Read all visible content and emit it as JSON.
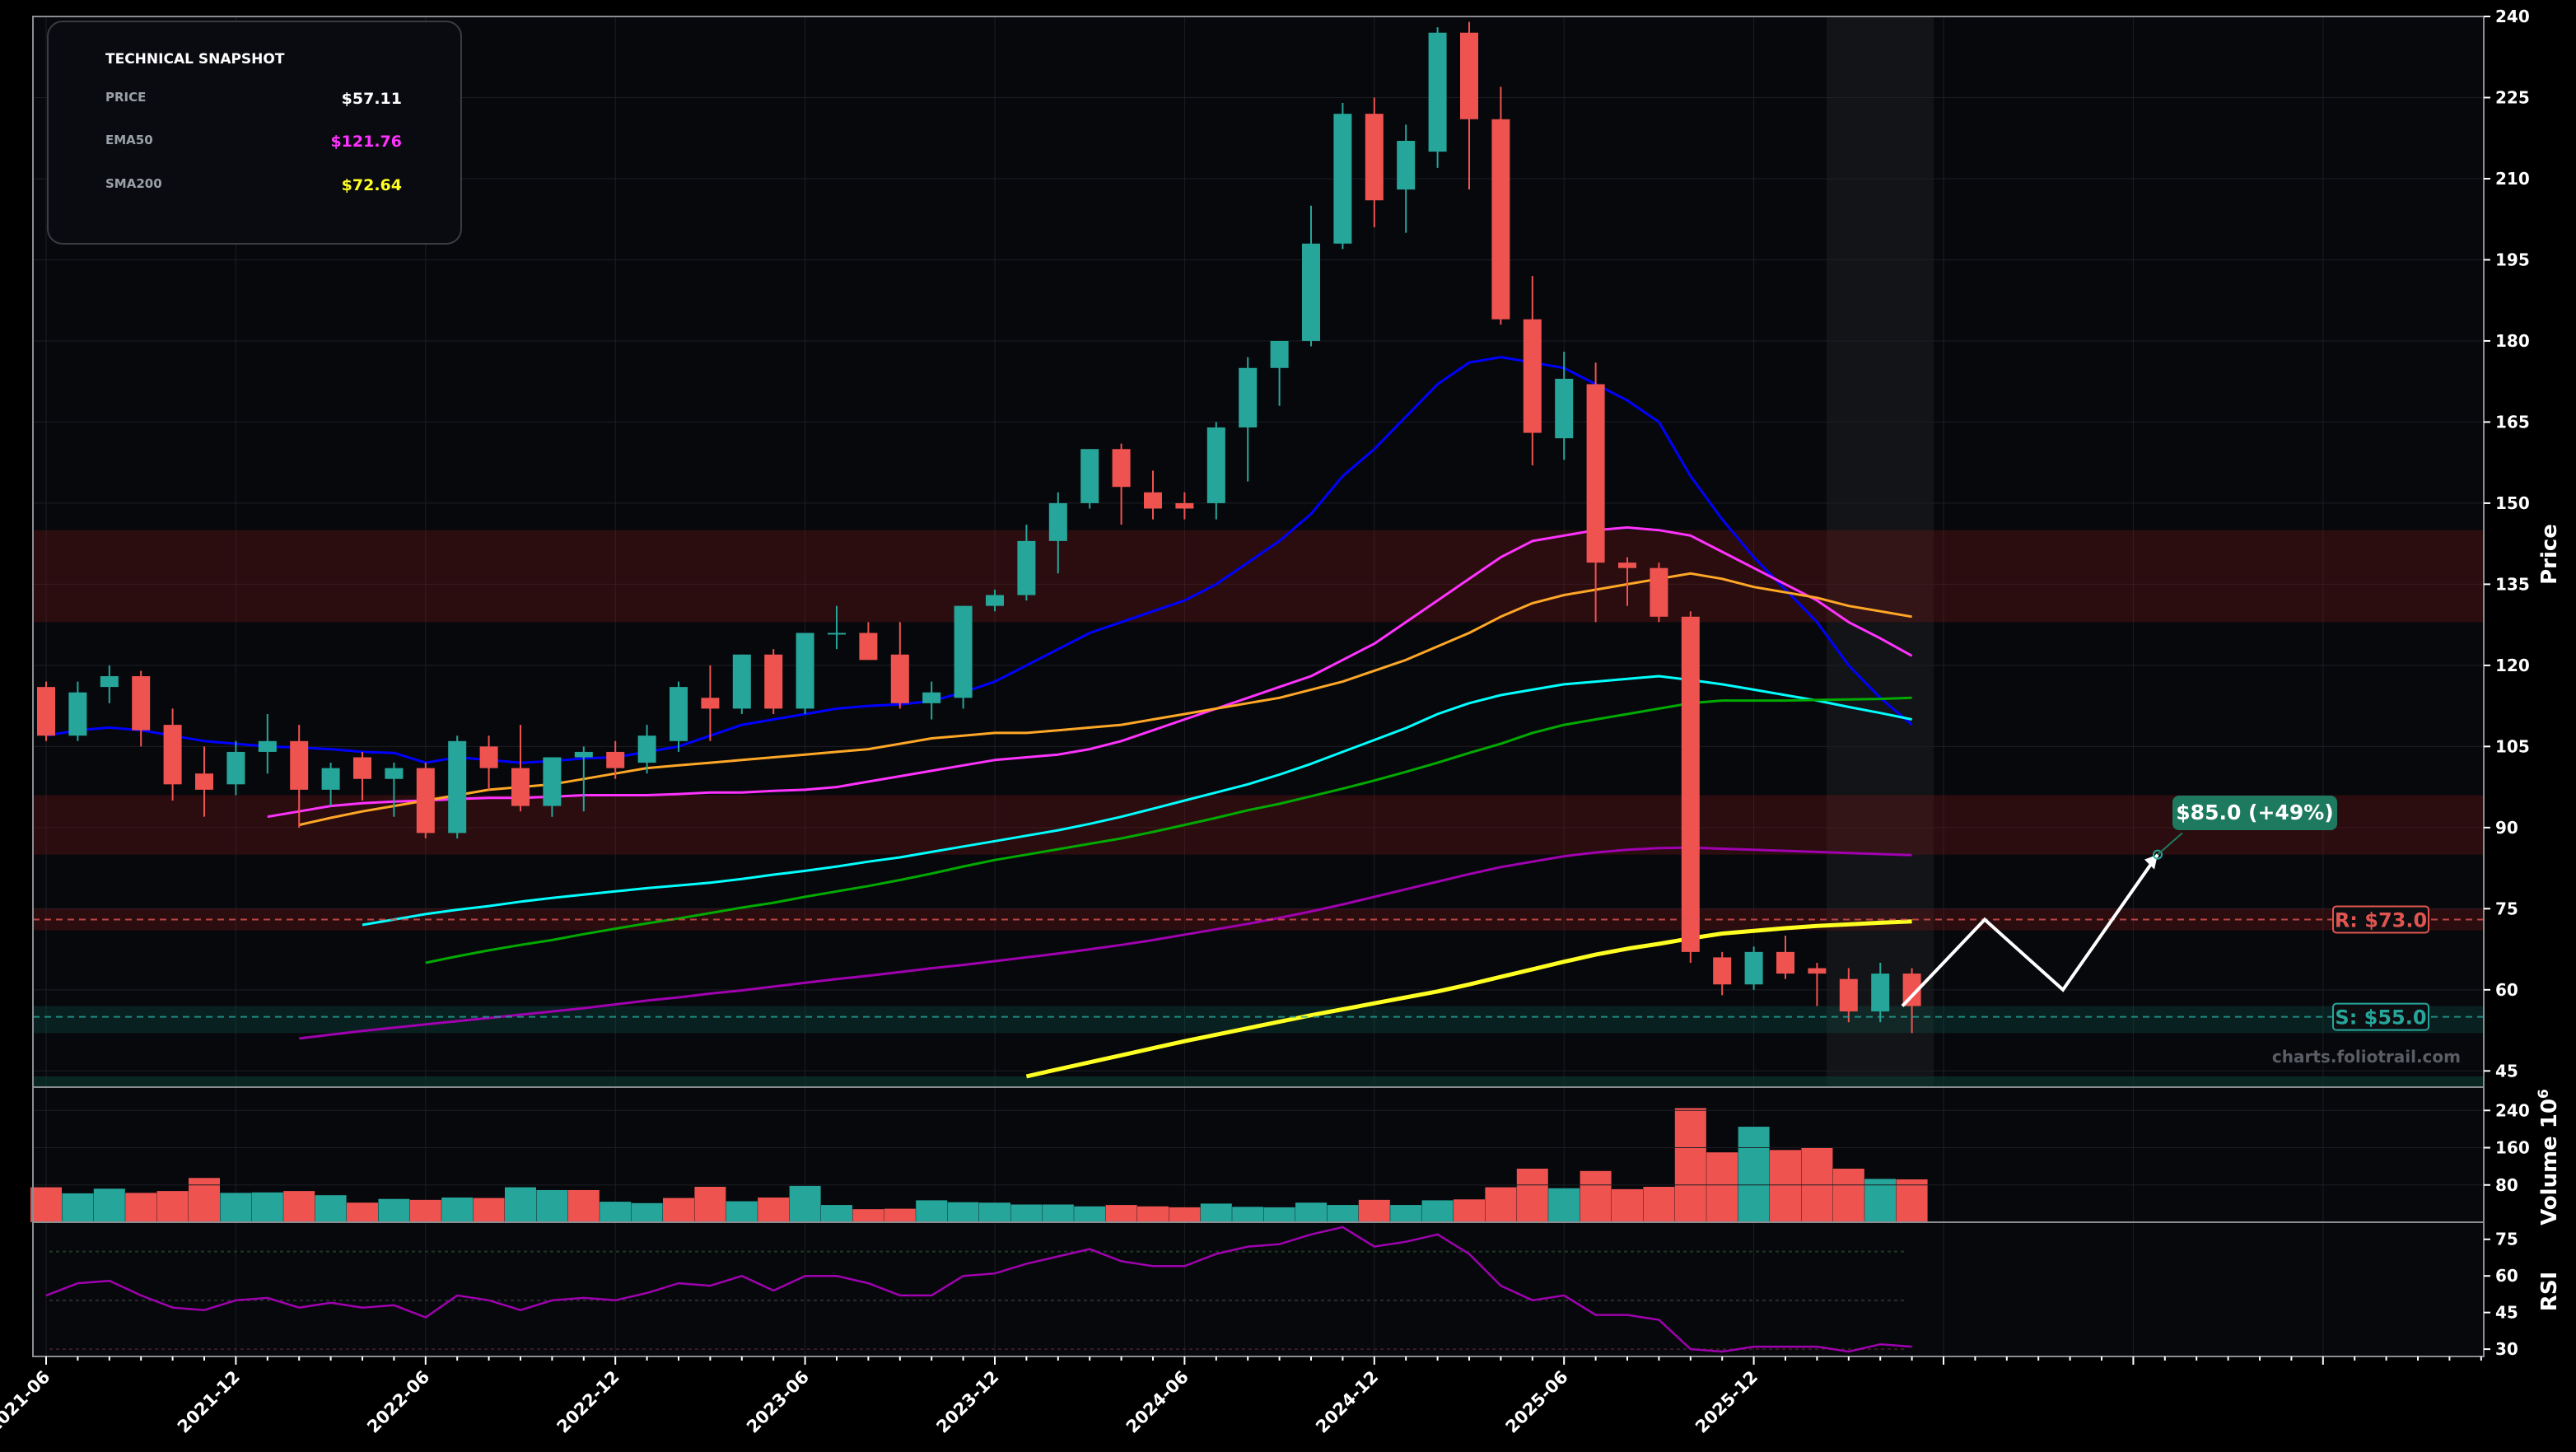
{
  "colors": {
    "background": "#000000",
    "panel": "#07080c",
    "up": "#26a69a",
    "down": "#ef5350",
    "ema20": "#0000ff",
    "ema50": "#ff33ff",
    "ema100": "#ffa726",
    "sma20": "#00ffff",
    "sma50": "#00aa00",
    "sma100": "#a000b0",
    "sma200": "#ffff22",
    "resistance": "#e05550",
    "support": "#26a69a",
    "projection": "#ffffff",
    "target": "#1e7a5e"
  },
  "snapshot": {
    "title": "TECHNICAL SNAPSHOT",
    "price_label": "PRICE",
    "price_value": "$57.11",
    "ema50_label": "EMA50",
    "ema50_value": "$121.76",
    "sma200_label": "SMA200",
    "sma200_value": "$72.64"
  },
  "watermark": "charts.foliotrail.com",
  "chart_data": [
    {
      "type": "candlestick",
      "ylabel": "Price",
      "ylim": [
        42,
        240
      ],
      "yticks": [
        45,
        60,
        75,
        90,
        105,
        120,
        135,
        150,
        165,
        180,
        195,
        210,
        225,
        240
      ],
      "x_months": [
        "2021-06",
        "2021-07",
        "2021-08",
        "2021-09",
        "2021-10",
        "2021-11",
        "2021-12",
        "2022-01",
        "2022-02",
        "2022-03",
        "2022-04",
        "2022-05",
        "2022-06",
        "2022-07",
        "2022-08",
        "2022-09",
        "2022-10",
        "2022-11",
        "2022-12",
        "2023-01",
        "2023-02",
        "2023-03",
        "2023-04",
        "2023-05",
        "2023-06",
        "2023-07",
        "2023-08",
        "2023-09",
        "2023-10",
        "2023-11",
        "2023-12",
        "2024-01",
        "2024-02",
        "2024-03",
        "2024-04",
        "2024-05",
        "2024-06",
        "2024-07",
        "2024-08",
        "2024-09",
        "2024-10",
        "2024-11",
        "2024-12",
        "2025-01",
        "2025-02",
        "2025-03",
        "2025-04",
        "2025-05",
        "2025-06",
        "2025-07",
        "2025-08",
        "2025-09",
        "2025-10",
        "2025-11",
        "2025-12",
        "2026-01",
        "2026-02",
        "2026-03",
        "2026-04",
        "2026-05"
      ],
      "xticks": [
        "2021-06",
        "2021-12",
        "2022-06",
        "2022-12",
        "2023-06",
        "2023-12",
        "2024-06",
        "2024-12",
        "2025-06",
        "2025-12"
      ],
      "ohlc": [
        [
          116,
          117,
          106,
          107
        ],
        [
          107,
          117,
          106,
          115
        ],
        [
          116,
          120,
          113,
          118
        ],
        [
          118,
          119,
          105,
          108
        ],
        [
          109,
          112,
          95,
          98
        ],
        [
          100,
          105,
          92,
          97
        ],
        [
          98,
          106,
          96,
          104
        ],
        [
          104,
          111,
          100,
          106
        ],
        [
          106,
          109,
          90,
          97
        ],
        [
          97,
          102,
          94,
          101
        ],
        [
          103,
          104,
          95,
          99
        ],
        [
          99,
          102,
          92,
          101
        ],
        [
          101,
          102,
          88,
          89
        ],
        [
          89,
          107,
          88,
          106
        ],
        [
          105,
          107,
          97,
          101
        ],
        [
          101,
          109,
          93,
          94
        ],
        [
          94,
          103,
          92,
          103
        ],
        [
          103,
          105,
          93,
          104
        ],
        [
          104,
          106,
          99,
          101
        ],
        [
          102,
          109,
          100,
          107
        ],
        [
          106,
          117,
          104,
          116
        ],
        [
          114,
          120,
          106,
          112
        ],
        [
          112,
          122,
          111,
          122
        ],
        [
          122,
          123,
          111,
          112
        ],
        [
          112,
          126,
          111,
          126
        ],
        [
          126,
          131,
          123,
          126
        ],
        [
          126,
          128,
          122,
          121
        ],
        [
          122,
          128,
          112,
          113
        ],
        [
          113,
          117,
          110,
          115
        ],
        [
          114,
          131,
          112,
          131
        ],
        [
          131,
          134,
          130,
          133
        ],
        [
          133,
          146,
          132,
          143
        ],
        [
          143,
          152,
          137,
          150
        ],
        [
          150,
          160,
          149,
          160
        ],
        [
          160,
          161,
          146,
          153
        ],
        [
          152,
          156,
          147,
          149
        ],
        [
          150,
          152,
          147,
          149
        ],
        [
          150,
          165,
          147,
          164
        ],
        [
          164,
          177,
          154,
          175
        ],
        [
          175,
          180,
          168,
          180
        ],
        [
          180,
          205,
          179,
          198
        ],
        [
          198,
          224,
          197,
          222
        ],
        [
          222,
          225,
          201,
          206
        ],
        [
          208,
          220,
          200,
          217
        ],
        [
          215,
          238,
          212,
          237
        ],
        [
          237,
          239,
          208,
          221
        ],
        [
          221,
          227,
          183,
          184
        ],
        [
          184,
          192,
          157,
          163
        ],
        [
          162,
          178,
          158,
          173
        ],
        [
          172,
          176,
          128,
          139
        ],
        [
          139,
          140,
          131,
          138
        ],
        [
          138,
          139,
          128,
          129
        ],
        [
          129,
          130,
          65,
          67
        ],
        [
          66,
          67,
          59,
          61
        ],
        [
          61,
          68,
          60,
          67
        ],
        [
          67,
          70,
          62,
          63
        ],
        [
          64,
          65,
          57,
          63
        ],
        [
          62,
          64,
          54,
          56
        ],
        [
          56,
          65,
          54,
          63
        ],
        [
          63,
          64,
          52,
          57
        ]
      ],
      "volume_ylim": [
        0,
        290
      ],
      "volume_yticks": [
        80,
        160,
        240
      ],
      "volume_ylabel": "Volume  10^6",
      "volume": [
        75,
        62,
        72,
        63,
        67,
        95,
        63,
        64,
        67,
        58,
        42,
        50,
        48,
        53,
        52,
        75,
        69,
        69,
        44,
        41,
        52,
        76,
        45,
        53,
        78,
        37,
        28,
        29,
        47,
        43,
        42,
        38,
        38,
        34,
        37,
        34,
        32,
        40,
        33,
        32,
        42,
        37,
        48,
        37,
        47,
        49,
        75,
        115,
        73,
        110,
        71,
        76,
        245,
        150,
        205,
        155,
        160,
        115,
        93,
        92
      ],
      "volume_dir": [
        "down",
        "up",
        "up",
        "down",
        "down",
        "down",
        "up",
        "up",
        "down",
        "up",
        "down",
        "up",
        "down",
        "up",
        "down",
        "up",
        "up",
        "down",
        "up",
        "up",
        "down",
        "down",
        "up",
        "down",
        "up",
        "up",
        "down",
        "down",
        "up",
        "up",
        "up",
        "up",
        "up",
        "up",
        "down",
        "down",
        "down",
        "up",
        "up",
        "up",
        "up",
        "up",
        "down",
        "up",
        "up",
        "down",
        "down",
        "down",
        "up",
        "down",
        "down",
        "down",
        "down",
        "down",
        "up",
        "down",
        "down",
        "down",
        "up",
        "down"
      ],
      "rsi_ylim": [
        27,
        82
      ],
      "rsi_yticks": [
        30,
        45,
        60,
        75
      ],
      "rsi_ylabel": "RSI",
      "rsi": [
        52,
        57,
        58,
        52,
        47,
        46,
        50,
        51,
        47,
        49,
        47,
        48,
        43,
        52,
        50,
        46,
        50,
        51,
        50,
        53,
        57,
        56,
        60,
        54,
        60,
        60,
        57,
        52,
        52,
        60,
        61,
        65,
        68,
        71,
        66,
        64,
        64,
        69,
        72,
        73,
        77,
        80,
        72,
        74,
        77,
        69,
        56,
        50,
        52,
        44,
        44,
        42,
        30,
        29,
        31,
        31,
        31,
        29,
        32,
        31
      ],
      "overlays": [
        {
          "key": "ema20",
          "values": [
            107,
            108,
            108.5,
            108,
            107,
            106,
            105.5,
            105,
            104.8,
            104.5,
            104,
            103.8,
            102,
            103,
            102.5,
            102,
            102.3,
            102.8,
            103,
            104,
            105,
            107,
            109,
            110,
            111,
            112,
            112.5,
            112.8,
            113.4,
            115,
            117,
            120,
            123,
            126,
            128,
            130,
            132,
            135,
            139,
            143,
            148,
            155,
            160,
            166,
            172,
            176,
            177,
            176,
            175,
            172,
            169,
            165,
            155,
            147,
            140,
            134,
            128,
            120,
            114,
            109
          ]
        },
        {
          "key": "ema50",
          "values": [
            92,
            93,
            94,
            94.5,
            94.8,
            95,
            95.3,
            95.5,
            95.5,
            95.7,
            96,
            96,
            96,
            96.2,
            96.5,
            96.5,
            96.8,
            97,
            97.5,
            98.5,
            99.5,
            100.5,
            101.5,
            102.5,
            103,
            103.5,
            104.5,
            106,
            108,
            110,
            112,
            114,
            116,
            118,
            121,
            124,
            128,
            132,
            136,
            140,
            143,
            144,
            145,
            145.5,
            145,
            144,
            141,
            138,
            135,
            132,
            128,
            125,
            121.76
          ]
        },
        {
          "key": "ema100",
          "values": [
            90.5,
            91.8,
            93,
            94,
            95,
            96,
            97,
            97.5,
            98,
            99,
            100,
            101,
            101.5,
            102,
            102.5,
            103,
            103.5,
            104,
            104.5,
            105.5,
            106.5,
            107,
            107.5,
            107.5,
            108,
            108.5,
            109,
            110,
            111,
            112,
            113,
            114,
            115.5,
            117,
            119,
            121,
            123.5,
            126,
            129,
            131.5,
            133,
            134,
            135,
            136,
            137,
            136,
            134.5,
            133.5,
            132.5,
            131,
            130,
            129
          ]
        },
        {
          "key": "sma20",
          "values": [
            72,
            73,
            74,
            74.8,
            75.5,
            76.3,
            77,
            77.6,
            78.2,
            78.8,
            79.3,
            79.8,
            80.5,
            81.3,
            82,
            82.8,
            83.7,
            84.5,
            85.5,
            86.5,
            87.5,
            88.5,
            89.5,
            90.7,
            92,
            93.5,
            95,
            96.5,
            98,
            99.8,
            101.8,
            104,
            106.2,
            108.4,
            111,
            113,
            114.5,
            115.5,
            116.5,
            117,
            117.5,
            118,
            117.3,
            116.5,
            115.5,
            114.5,
            113.5,
            112.3,
            111.2,
            110
          ]
        },
        {
          "key": "sma50",
          "values": [
            65,
            66.2,
            67.3,
            68.3,
            69.2,
            70.3,
            71.3,
            72.3,
            73.2,
            74.2,
            75.2,
            76.1,
            77.2,
            78.2,
            79.2,
            80.3,
            81.5,
            82.8,
            84,
            85,
            86,
            87,
            88,
            89.2,
            90.5,
            91.8,
            93.2,
            94.4,
            95.8,
            97.2,
            98.7,
            100.3,
            102,
            103.8,
            105.5,
            107.5,
            109,
            110,
            111,
            112,
            113,
            113.5,
            113.5,
            113.5,
            113.6,
            113.7,
            113.8,
            114
          ]
        },
        {
          "key": "sma100",
          "values": [
            51,
            51.7,
            52.4,
            53,
            53.6,
            54.2,
            54.8,
            55.4,
            56,
            56.6,
            57.3,
            58,
            58.6,
            59.3,
            59.9,
            60.6,
            61.3,
            62,
            62.6,
            63.3,
            64,
            64.6,
            65.3,
            66,
            66.7,
            67.5,
            68.3,
            69.2,
            70.2,
            71.2,
            72.2,
            73.3,
            74.5,
            75.8,
            77.2,
            78.6,
            80,
            81.4,
            82.7,
            83.7,
            84.7,
            85.4,
            85.9,
            86.2,
            86.3,
            86.1,
            85.9,
            85.7,
            85.5,
            85.3,
            85.1,
            84.9
          ]
        },
        {
          "key": "sma200",
          "values": [
            44,
            45.3,
            46.6,
            47.9,
            49.2,
            50.5,
            51.7,
            52.9,
            54.1,
            55.3,
            56.4,
            57.5,
            58.6,
            59.7,
            61,
            62.4,
            63.8,
            65.2,
            66.5,
            67.6,
            68.5,
            69.5,
            70.4,
            70.9,
            71.4,
            71.8,
            72.1,
            72.4,
            72.64
          ]
        }
      ],
      "resistance": {
        "value": 73.0,
        "label": "R: $73.0"
      },
      "support": {
        "value": 55.0,
        "label": "S: $55.0"
      },
      "zones": [
        {
          "from": 128,
          "to": 145,
          "kind": "resistance"
        },
        {
          "from": 85,
          "to": 96,
          "kind": "resistance"
        },
        {
          "from": 71,
          "to": 75,
          "kind": "resistance"
        },
        {
          "from": 52,
          "to": 57,
          "kind": "support"
        }
      ],
      "projection": [
        57,
        73,
        60,
        85
      ],
      "target": {
        "value": 85.0,
        "label": "$85.0 (+49%)"
      }
    }
  ]
}
